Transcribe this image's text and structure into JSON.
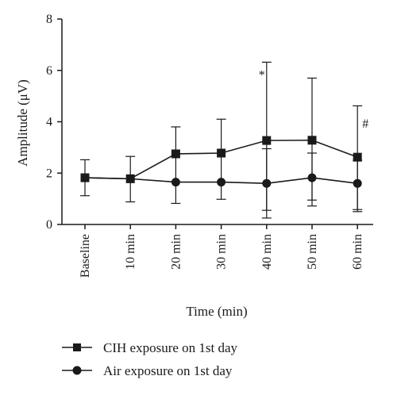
{
  "chart_data": {
    "type": "line",
    "xlabel": "Time (min)",
    "ylabel": "Amplitude (μV)",
    "ylim": [
      0,
      8
    ],
    "yticks": [
      0,
      2,
      4,
      6,
      8
    ],
    "categories": [
      "Baseline",
      "10 min",
      "20 min",
      "30 min",
      "40 min",
      "50 min",
      "60 min"
    ],
    "series": [
      {
        "name": "CIH exposure on 1st day",
        "marker": "square",
        "values": [
          1.82,
          1.78,
          2.75,
          2.78,
          3.27,
          3.28,
          2.62
        ],
        "err_upper": [
          2.52,
          2.65,
          3.8,
          4.1,
          6.32,
          5.7,
          4.62
        ],
        "err_lower": [
          1.12,
          0.88,
          0.82,
          0.98,
          0.25,
          0.72,
          0.5
        ]
      },
      {
        "name": "Air exposure on 1st day",
        "marker": "circle",
        "values": [
          1.82,
          1.78,
          1.65,
          1.65,
          1.6,
          1.82,
          1.6
        ],
        "err_upper": [
          1.82,
          1.78,
          1.65,
          1.65,
          2.95,
          2.78,
          2.5
        ],
        "err_lower": [
          1.82,
          1.78,
          1.65,
          1.65,
          0.55,
          0.95,
          0.58
        ]
      }
    ],
    "annotations": [
      {
        "category": "40 min",
        "value": 5.95,
        "text": "*"
      },
      {
        "category": "60 min",
        "value": 4.05,
        "text": "#"
      }
    ],
    "legend": "bottom",
    "grid": false
  }
}
